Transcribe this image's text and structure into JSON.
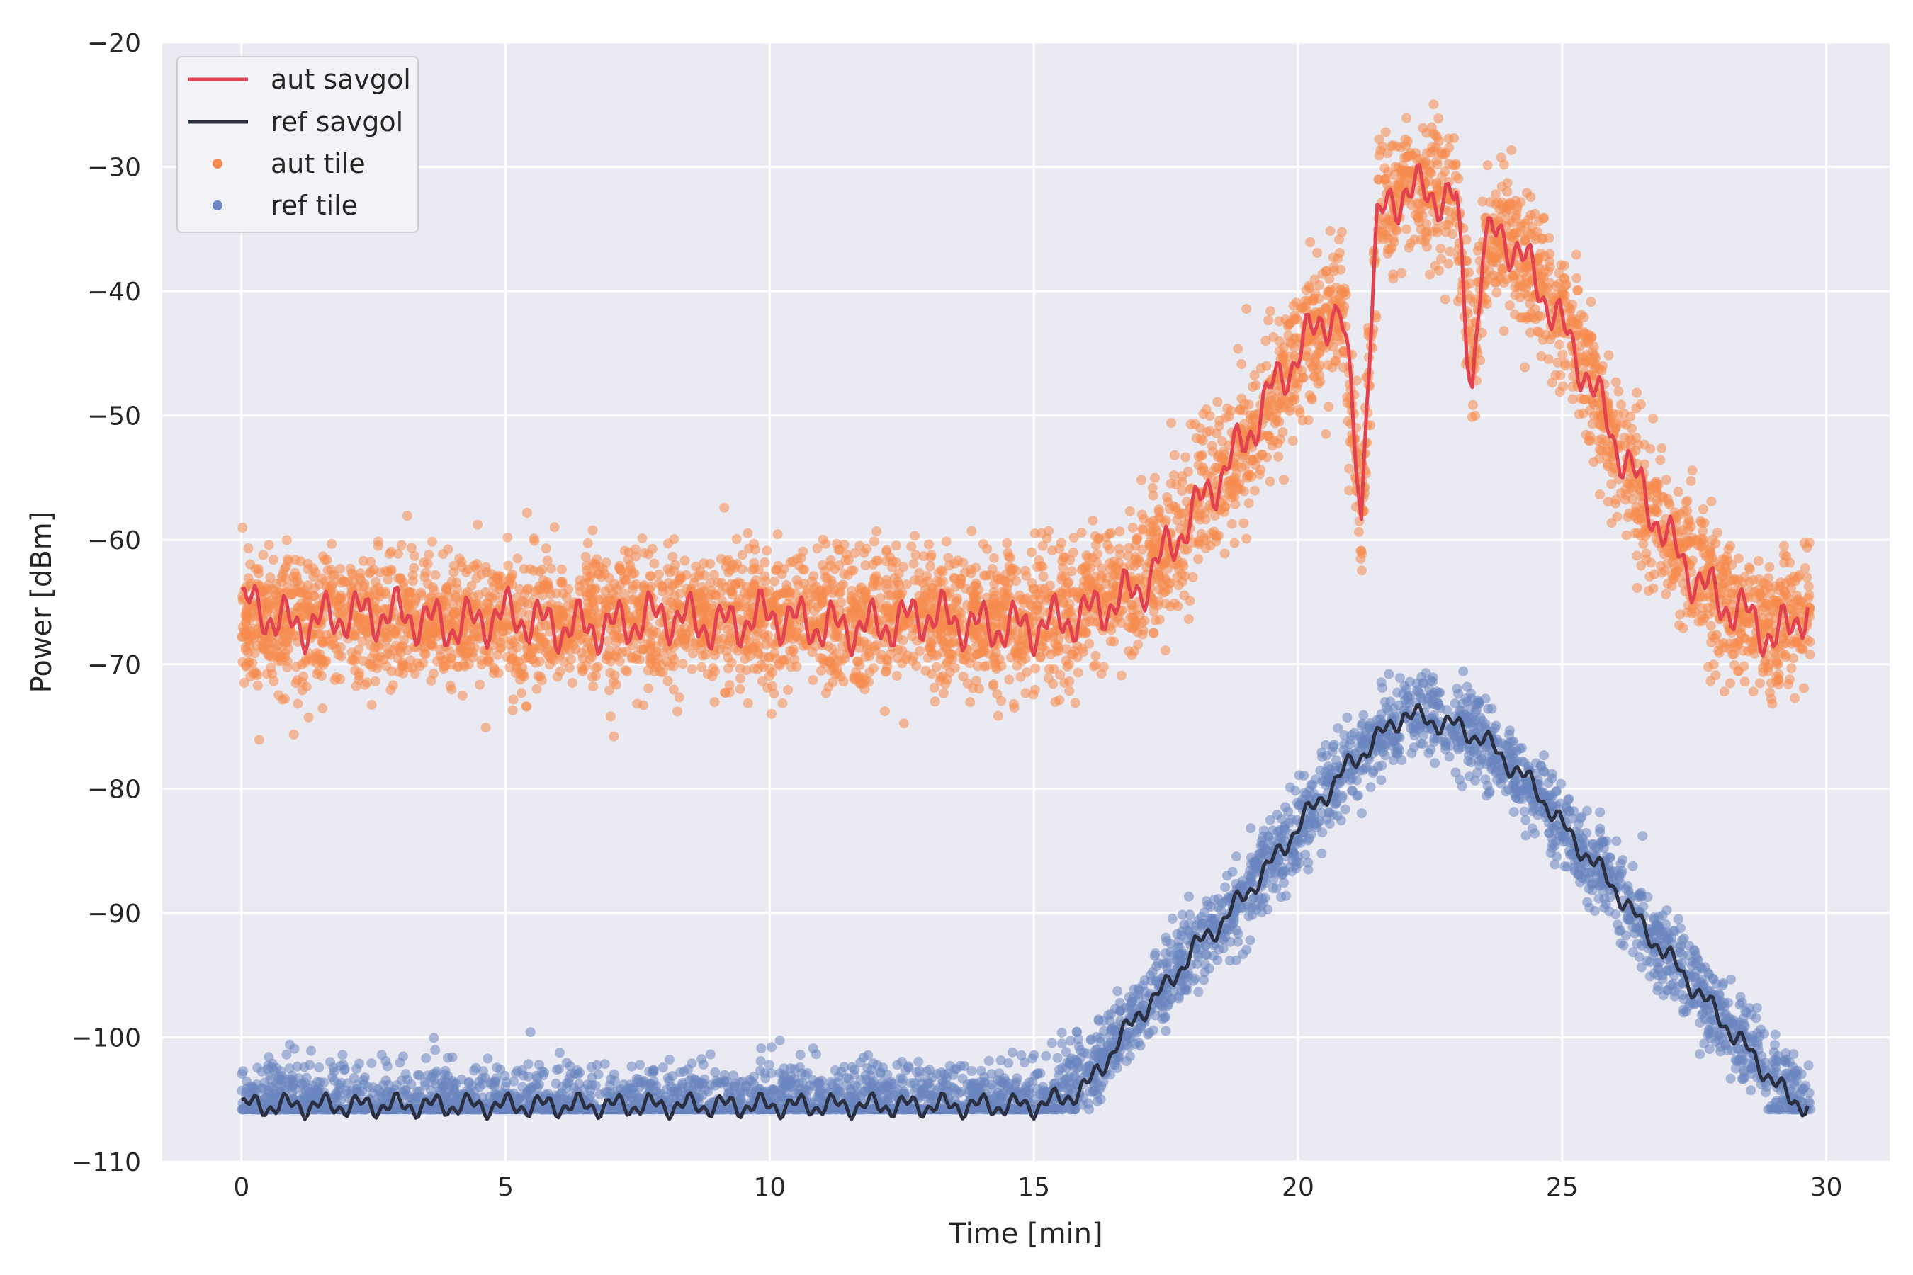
{
  "chart_data": {
    "type": "scatter",
    "xlabel": "Time [min]",
    "ylabel": "Power [dBm]",
    "xlim": [
      -1.5,
      31.2
    ],
    "ylim": [
      -110,
      -20
    ],
    "xticks": [
      0,
      5,
      10,
      15,
      20,
      25,
      30
    ],
    "yticks": [
      -20,
      -30,
      -40,
      -50,
      -60,
      -70,
      -80,
      -90,
      -100,
      -110
    ],
    "xtick_labels": [
      "0",
      "5",
      "10",
      "15",
      "20",
      "25",
      "30"
    ],
    "ytick_labels": [
      "−20",
      "−30",
      "−40",
      "−50",
      "−60",
      "−70",
      "−80",
      "−90",
      "−100",
      "−110"
    ],
    "grid": true,
    "background": "#eaeaf2",
    "legend_position": "upper-left",
    "series": [
      {
        "name": "aut savgol",
        "kind": "line",
        "color": "#e2414f",
        "x": [
          0,
          1,
          2,
          3,
          4,
          5,
          6,
          7,
          8,
          9,
          10,
          11,
          12,
          13,
          14,
          15,
          16,
          17,
          17.5,
          18,
          18.5,
          19,
          19.5,
          20,
          20.5,
          20.8,
          21.0,
          21.1,
          21.2,
          21.3,
          21.5,
          21.7,
          22,
          22.5,
          23,
          23.1,
          23.2,
          23.3,
          23.5,
          23.8,
          24,
          24.5,
          25,
          25.5,
          26,
          26.5,
          27,
          27.5,
          28,
          28.5,
          29,
          29.3,
          29.7
        ],
        "y": [
          -65,
          -67,
          -66,
          -66,
          -67,
          -66,
          -67,
          -67,
          -66,
          -67,
          -66,
          -67,
          -67,
          -66,
          -67,
          -67,
          -66,
          -64,
          -61,
          -58,
          -55,
          -52,
          -48,
          -45,
          -42,
          -42,
          -48,
          -53,
          -58,
          -48,
          -35,
          -33,
          -32,
          -32,
          -33,
          -38,
          -44,
          -47,
          -37,
          -35,
          -36,
          -39,
          -43,
          -47,
          -52,
          -56,
          -60,
          -63,
          -65,
          -66,
          -68,
          -67,
          -65
        ]
      },
      {
        "name": "ref savgol",
        "kind": "line",
        "color": "#2a3042",
        "x": [
          0,
          2,
          4,
          6,
          8,
          10,
          12,
          14,
          15,
          15.5,
          16,
          16.5,
          17,
          17.5,
          18,
          18.5,
          19,
          19.5,
          20,
          20.5,
          21,
          21.5,
          22,
          22.5,
          23,
          23.5,
          24,
          24.5,
          25,
          25.5,
          26,
          26.5,
          27,
          27.5,
          28,
          28.5,
          29,
          29.3,
          29.7
        ],
        "y": [
          -105.5,
          -105.5,
          -105.5,
          -105.5,
          -105.5,
          -105.5,
          -105.5,
          -105.5,
          -105.5,
          -105,
          -104,
          -101,
          -98,
          -96,
          -93,
          -91,
          -88.5,
          -86,
          -83,
          -80.5,
          -78,
          -76,
          -74,
          -74.5,
          -75,
          -76,
          -78,
          -80,
          -83,
          -85.5,
          -88,
          -91,
          -93.5,
          -96,
          -98.5,
          -101,
          -103.5,
          -105,
          -105.5
        ]
      },
      {
        "name": "aut tile",
        "kind": "scatter",
        "color": "#f58b4c",
        "center_x": [
          0,
          5,
          10,
          15,
          17,
          18,
          19,
          20,
          20.8,
          21.2,
          21.5,
          22,
          22.5,
          23,
          23.3,
          23.6,
          24,
          25,
          26,
          27,
          28,
          29,
          29.7
        ],
        "center_y": [
          -66.5,
          -66.5,
          -66.5,
          -66.5,
          -64,
          -58,
          -52,
          -45,
          -41,
          -58,
          -34,
          -32,
          -32,
          -33,
          -45,
          -36,
          -36,
          -42,
          -52,
          -60,
          -65,
          -67,
          -66
        ],
        "spread_dBm": 5
      },
      {
        "name": "ref tile",
        "kind": "scatter",
        "color": "#6a85bf",
        "center_x": [
          0,
          5,
          10,
          15,
          16,
          17,
          18,
          19,
          20,
          21,
          22,
          22.5,
          23,
          24,
          25,
          26,
          27,
          28,
          29,
          29.7
        ],
        "center_y": [
          -105.5,
          -105.5,
          -105.5,
          -105.5,
          -103,
          -98,
          -93,
          -88.5,
          -83,
          -78,
          -74,
          -73.5,
          -75,
          -78,
          -83,
          -88,
          -93.5,
          -98.5,
          -103.5,
          -105.5
        ],
        "spread_dBm": 3
      }
    ]
  }
}
